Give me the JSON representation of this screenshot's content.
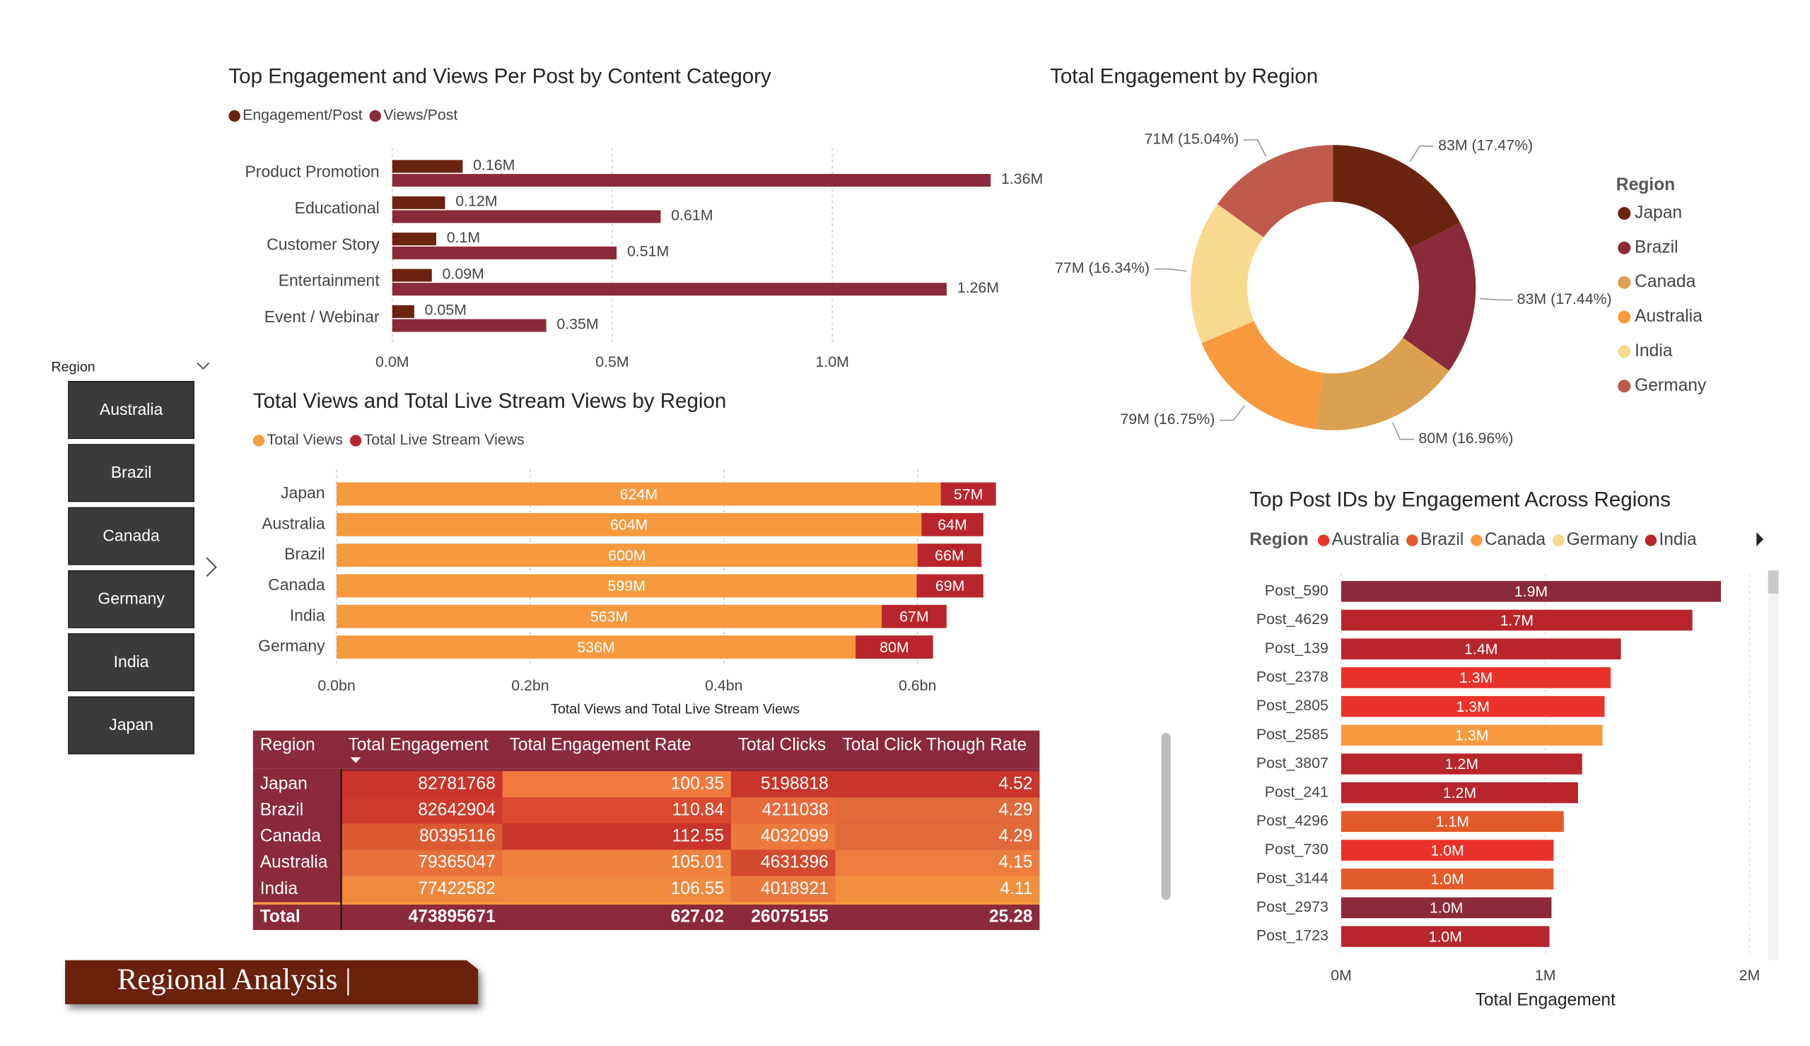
{
  "page_title": "Regional Analysis |",
  "slicer": {
    "title": "Region",
    "items": [
      "Australia",
      "Brazil",
      "Canada",
      "Germany",
      "India",
      "Japan"
    ]
  },
  "table": {
    "columns": [
      "Region",
      "Total Engagement",
      "Total Engagement Rate",
      "Total Clicks",
      "Total Click Though Rate"
    ],
    "rows": [
      [
        "Japan",
        "82781768",
        "100.35",
        "5198818",
        "4.52"
      ],
      [
        "Brazil",
        "82642904",
        "110.84",
        "4211038",
        "4.29"
      ],
      [
        "Canada",
        "80395116",
        "112.55",
        "4032099",
        "4.29"
      ],
      [
        "Australia",
        "79365047",
        "105.01",
        "4631396",
        "4.15"
      ],
      [
        "India",
        "77422582",
        "106.55",
        "4018921",
        "4.11"
      ]
    ],
    "total": [
      "Total",
      "473895671",
      "627.02",
      "26075155",
      "25.28"
    ]
  },
  "chart_data": [
    {
      "type": "grouped-hbar",
      "title": "Top Engagement and Views Per Post by Content Category",
      "categories": [
        "Product Promotion",
        "Educational",
        "Customer Story",
        "Entertainment",
        "Event / Webinar"
      ],
      "series": [
        {
          "name": "Engagement/Post",
          "color": "#6b2410",
          "values": [
            0.16,
            0.12,
            0.1,
            0.09,
            0.05
          ],
          "value_labels": [
            "0.16M",
            "0.12M",
            "0.1M",
            "0.09M",
            "0.05M"
          ]
        },
        {
          "name": "Views/Post",
          "color": "#8b2a3a",
          "values": [
            1.36,
            0.61,
            0.51,
            1.26,
            0.35
          ],
          "value_labels": [
            "1.36M",
            "0.61M",
            "0.51M",
            "1.26M",
            "0.35M"
          ]
        }
      ],
      "xlim": [
        0,
        1.45
      ],
      "xticks": [
        {
          "value": 0,
          "label": "0.0M"
        },
        {
          "value": 0.5,
          "label": "0.5M"
        },
        {
          "value": 1,
          "label": "1.0M"
        }
      ],
      "grid": true
    },
    {
      "type": "stacked-hbar",
      "title": "Total Views and Total Live Stream Views by Region",
      "x_label": "Total Views and Total Live Stream Views",
      "categories": [
        "Japan",
        "Australia",
        "Brazil",
        "Canada",
        "India",
        "Germany"
      ],
      "series": [
        {
          "name": "Total Views",
          "color": "#f79a3f",
          "values": [
            0.624,
            0.604,
            0.6,
            0.599,
            0.563,
            0.536
          ],
          "value_labels": [
            "624M",
            "604M",
            "600M",
            "599M",
            "563M",
            "536M"
          ]
        },
        {
          "name": "Total Live Stream Views",
          "color": "#b8262c",
          "values": [
            0.057,
            0.064,
            0.066,
            0.069,
            0.067,
            0.08
          ],
          "value_labels": [
            "57M",
            "64M",
            "66M",
            "69M",
            "67M",
            "80M"
          ]
        }
      ],
      "xlim": [
        0,
        0.75
      ],
      "xticks": [
        {
          "value": 0,
          "label": "0.0bn"
        },
        {
          "value": 0.2,
          "label": "0.2bn"
        },
        {
          "value": 0.4,
          "label": "0.4bn"
        },
        {
          "value": 0.6,
          "label": "0.6bn"
        }
      ],
      "grid": true
    },
    {
      "type": "donut",
      "title": "Total Engagement by Region",
      "legend_title": "Region",
      "categories": [
        "Japan",
        "Brazil",
        "Canada",
        "Australia",
        "India",
        "Germany"
      ],
      "values": [
        17.47,
        17.44,
        16.96,
        16.75,
        16.34,
        15.04
      ],
      "value_labels": [
        "83M (17.47%)",
        "83M (17.44%)",
        "80M (16.96%)",
        "79M (16.75%)",
        "77M (16.34%)",
        "71M (15.04%)"
      ],
      "colors": [
        "#6b2410",
        "#8b2a3a",
        "#dba050",
        "#f79a3f",
        "#f9d98f",
        "#bf5a4b"
      ]
    },
    {
      "type": "hbar",
      "title": "Top Post IDs by Engagement Across Regions",
      "legend_title": "Region",
      "x_label": "Total Engagement",
      "legend": [
        {
          "name": "Australia",
          "color": "#e8322a"
        },
        {
          "name": "Brazil",
          "color": "#e35a2a"
        },
        {
          "name": "Canada",
          "color": "#f79a3f"
        },
        {
          "name": "Germany",
          "color": "#f9d98f"
        },
        {
          "name": "India",
          "color": "#b8262c"
        }
      ],
      "categories": [
        "Post_590",
        "Post_4629",
        "Post_139",
        "Post_2378",
        "Post_2805",
        "Post_2585",
        "Post_3807",
        "Post_241",
        "Post_4296",
        "Post_730",
        "Post_3144",
        "Post_2973",
        "Post_1723"
      ],
      "values": [
        1.86,
        1.72,
        1.37,
        1.32,
        1.29,
        1.28,
        1.18,
        1.16,
        1.09,
        1.04,
        1.04,
        1.03,
        1.02
      ],
      "value_labels": [
        "1.9M",
        "1.7M",
        "1.4M",
        "1.3M",
        "1.3M",
        "1.3M",
        "1.2M",
        "1.2M",
        "1.1M",
        "1.0M",
        "1.0M",
        "1.0M",
        "1.0M"
      ],
      "colors": [
        "#8b2a3a",
        "#b8262c",
        "#b8262c",
        "#e8322a",
        "#e8322a",
        "#f79a3f",
        "#b8262c",
        "#b8262c",
        "#e35a2a",
        "#e8322a",
        "#e35a2a",
        "#8b2a3a",
        "#b8262c"
      ],
      "xlim": [
        0,
        2
      ],
      "xticks": [
        {
          "value": 0,
          "label": "0M"
        },
        {
          "value": 1,
          "label": "1M"
        },
        {
          "value": 2,
          "label": "2M"
        }
      ],
      "grid": true
    }
  ]
}
